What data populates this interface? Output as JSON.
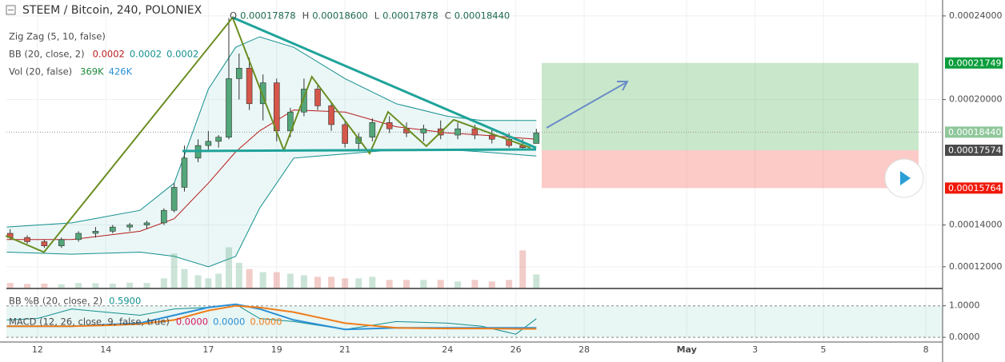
{
  "chart_data": {
    "type": "candlestick",
    "title": "STEEM / Bitcoin, 240, POLONIEX",
    "ohlc_legend": [
      {
        "label": "O",
        "value": "0.00017878"
      },
      {
        "label": "H",
        "value": "0.00018600"
      },
      {
        "label": "L",
        "value": "0.00017878"
      },
      {
        "label": "C",
        "value": "0.00018440"
      }
    ],
    "indicators": [
      {
        "name": "Zig Zag (5, 10, false)",
        "values": [],
        "colors": []
      },
      {
        "name": "BB (20, close, 2)",
        "values": [
          "0.0002",
          "0.0002",
          "0.0002"
        ],
        "colors": [
          "#b71c1c",
          "#138f8f",
          "#138f8f"
        ]
      },
      {
        "name": "Vol (20, false)",
        "values": [
          "369K",
          "426K"
        ],
        "colors": [
          "#1b8a3a",
          "#2a8fd6"
        ]
      }
    ],
    "xlim": [
      11.09,
      38.49
    ],
    "xticks": [
      12,
      14,
      17,
      19,
      21,
      24,
      26,
      28,
      {
        "value": 31,
        "label": "May"
      },
      {
        "value": 33,
        "label": "3"
      },
      {
        "value": 35,
        "label": "5"
      },
      {
        "value": 38,
        "label": "8"
      }
    ],
    "ylim": [
      0.00011,
      0.0002457
    ],
    "yticks": [
      {
        "value": 0.00024,
        "label": "0.00024000"
      },
      {
        "value": 0.0002,
        "label": "0.00020000"
      },
      {
        "value": 0.00014,
        "label": "0.00014000"
      },
      {
        "value": 0.00012,
        "label": "0.00012000"
      }
    ],
    "grid": true,
    "up_color": "#53a679",
    "down_color": "#d4574a",
    "x": [
      11.2,
      11.7,
      12.2,
      12.7,
      13.2,
      13.7,
      14.2,
      14.7,
      15.2,
      15.7,
      16.0,
      16.3,
      16.7,
      17.0,
      17.3,
      17.6,
      17.9,
      18.2,
      18.6,
      19.0,
      19.4,
      19.8,
      20.2,
      20.6,
      21.0,
      21.4,
      21.8,
      22.3,
      22.8,
      23.3,
      23.8,
      24.3,
      24.8,
      25.3,
      25.8,
      26.2,
      26.6
    ],
    "open": [
      0.000136,
      0.000134,
      0.000132,
      0.00013,
      0.000133,
      0.000136,
      0.000137,
      0.000139,
      0.00014,
      0.000141,
      0.000147,
      0.000158,
      0.000172,
      0.000178,
      0.00018,
      0.000182,
      0.00021,
      0.000215,
      0.000198,
      0.000208,
      0.000185,
      0.000194,
      0.000205,
      0.000197,
      0.000188,
      0.000179,
      0.000182,
      0.000189,
      0.000186,
      0.000184,
      0.000186,
      0.000183,
      0.000186,
      0.000183,
      0.000181,
      0.000178,
      0.000179
    ],
    "high": [
      0.000138,
      0.000135,
      0.000133,
      0.000134,
      0.000137,
      0.000139,
      0.00014,
      0.000141,
      0.000142,
      0.000148,
      0.00016,
      0.000178,
      0.000181,
      0.000185,
      0.000183,
      0.000239,
      0.000222,
      0.00022,
      0.000212,
      0.00021,
      0.000196,
      0.00021,
      0.000207,
      0.000199,
      0.00019,
      0.000184,
      0.000191,
      0.000192,
      0.000189,
      0.000188,
      0.00019,
      0.000189,
      0.000188,
      0.000186,
      0.000184,
      0.000181,
      0.000186
    ],
    "low": [
      0.000133,
      0.000131,
      0.000129,
      0.000129,
      0.000132,
      0.000134,
      0.000136,
      0.000137,
      0.000138,
      0.00014,
      0.000146,
      0.000156,
      0.00017,
      0.000176,
      0.000177,
      0.000181,
      0.0002,
      0.000195,
      0.00019,
      0.00018,
      0.000182,
      0.000192,
      0.000195,
      0.000185,
      0.000177,
      0.000176,
      0.00018,
      0.000184,
      0.000182,
      0.00018,
      0.000181,
      0.000181,
      0.000181,
      0.000179,
      0.000177,
      0.000176,
      0.000179
    ],
    "close": [
      0.000134,
      0.000132,
      0.00013,
      0.000133,
      0.000136,
      0.000137,
      0.000139,
      0.00014,
      0.000141,
      0.000147,
      0.000158,
      0.000172,
      0.000178,
      0.00018,
      0.000182,
      0.00021,
      0.000215,
      0.000198,
      0.000208,
      0.000185,
      0.000194,
      0.000205,
      0.000197,
      0.000188,
      0.000179,
      0.000182,
      0.000189,
      0.000186,
      0.000184,
      0.000186,
      0.000183,
      0.000186,
      0.000183,
      0.000181,
      0.000178,
      0.000177,
      0.000184
    ],
    "volume": [
      150,
      120,
      130,
      110,
      150,
      140,
      130,
      160,
      150,
      300,
      1100,
      600,
      400,
      300,
      450,
      1300,
      800,
      600,
      500,
      500,
      450,
      400,
      350,
      350,
      300,
      300,
      350,
      250,
      250,
      250,
      250,
      200,
      250,
      200,
      250,
      1200,
      426
    ],
    "vlim": [
      0,
      1800
    ],
    "bb": {
      "x": [
        11.1,
        13,
        15,
        16,
        17,
        17.8,
        18.5,
        19.5,
        21,
        22.5,
        24,
        25,
        26.6
      ],
      "upper": [
        0.000139,
        0.000141,
        0.000147,
        0.00016,
        0.000205,
        0.000225,
        0.00023,
        0.000225,
        0.00021,
        0.000198,
        0.000192,
        0.00019,
        0.00019
      ],
      "middle": [
        0.000133,
        0.000133,
        0.000137,
        0.000143,
        0.00016,
        0.000175,
        0.000185,
        0.000195,
        0.000194,
        0.000187,
        0.000184,
        0.000183,
        0.000181
      ],
      "lower": [
        0.000127,
        0.000126,
        0.000127,
        0.000125,
        0.00012,
        0.000125,
        0.000148,
        0.000172,
        0.000174,
        0.000176,
        0.000176,
        0.000175,
        0.000173
      ]
    },
    "zigzag": {
      "x": [
        11.07,
        12.19,
        17.71,
        19.21,
        20.03,
        21.72,
        22.26,
        23.38,
        24.18,
        26.43
      ],
      "values": [
        0.0001348,
        0.000127,
        0.0002392,
        0.0001757,
        0.0002109,
        0.0001742,
        0.0001941,
        0.0001777,
        0.0001903,
        0.0001769
      ]
    },
    "price_flags": [
      {
        "value": 0.00021749,
        "label": "0.00021749",
        "color": "#0c9d3c"
      },
      {
        "value": 0.0001844,
        "label": "0.00018440",
        "color": "#8fc79a"
      },
      {
        "value": 0.00017574,
        "label": "0.00017574",
        "color": "#4a4a4a"
      },
      {
        "value": 0.00015764,
        "label": "0.00015764",
        "color": "#f01a0a"
      }
    ],
    "lower_pane": {
      "bbpct_legend": "BB %B (20, close, 2)",
      "bbpct_value": "0.5900",
      "macd_legend": "MACD (12, 26, close, 9, false, true)",
      "macd_values": [
        "0.0000",
        "0.0000",
        "0.0000"
      ],
      "ylim": [
        -0.15,
        1.5
      ],
      "yticks": [
        {
          "value": 1,
          "label": "1.0000"
        },
        {
          "value": 0,
          "label": "0.0000"
        }
      ],
      "x": [
        11.1,
        12,
        13,
        14,
        15,
        16,
        17,
        17.8,
        18.5,
        19.5,
        21,
        22.5,
        24,
        25,
        26,
        26.6
      ],
      "bb_pct": [
        0.55,
        0.6,
        0.9,
        0.8,
        0.7,
        0.9,
        0.95,
        1.05,
        0.6,
        0.5,
        0.25,
        0.5,
        0.45,
        0.35,
        0.1,
        0.59
      ],
      "macd": [
        0.35,
        0.35,
        0.35,
        0.4,
        0.45,
        0.7,
        0.95,
        1.05,
        0.9,
        0.55,
        0.25,
        0.3,
        0.3,
        0.3,
        0.3,
        0.3
      ],
      "signal": [
        0.35,
        0.35,
        0.35,
        0.38,
        0.42,
        0.55,
        0.85,
        1.0,
        0.95,
        0.8,
        0.45,
        0.3,
        0.28,
        0.28,
        0.27,
        0.27
      ]
    }
  }
}
